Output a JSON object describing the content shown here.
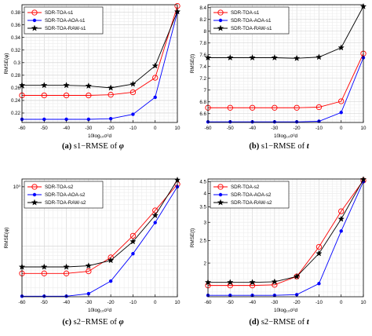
{
  "figure": {
    "colors": {
      "toa": "#ff0000",
      "aoa": "#0000ff",
      "raw": "#000000",
      "grid": "#d9d9d9",
      "axis": "#000000"
    }
  },
  "chart_data": [
    {
      "type": "line",
      "id": "a",
      "caption": {
        "letter": "(a)",
        "text": "s1−RMSE of",
        "symbol": "φ"
      },
      "xlabel": "10log₁₀σ²d",
      "ylabel": "RMSE(φ)",
      "xlim": [
        -60,
        10
      ],
      "ylim": [
        0.205,
        0.392
      ],
      "x": [
        -60,
        -50,
        -40,
        -30,
        -20,
        -10,
        0,
        10
      ],
      "xticks": [
        "-60",
        "-50",
        "-40",
        "-30",
        "-20",
        "-10",
        "0",
        "10"
      ],
      "yticks": [
        0.22,
        0.24,
        0.26,
        0.28,
        0.3,
        0.32,
        0.34,
        0.36,
        0.38
      ],
      "yticklabels": [
        "0.22",
        "0.24",
        "0.26",
        "0.28",
        "0.3",
        "0.32",
        "0.34",
        "0.36",
        "0.38"
      ],
      "log": false,
      "legend": "top-left",
      "series": [
        {
          "name": "SDR-TOA-s1",
          "marker": "circle",
          "color": "#ff0000",
          "values": [
            0.248,
            0.248,
            0.248,
            0.248,
            0.249,
            0.253,
            0.276,
            0.39
          ]
        },
        {
          "name": "SDR-TOA-AOA-s1",
          "marker": "dot",
          "color": "#0000ff",
          "values": [
            0.21,
            0.21,
            0.21,
            0.21,
            0.211,
            0.218,
            0.245,
            0.38
          ]
        },
        {
          "name": "SDR-TOA-RAW-s1",
          "marker": "star",
          "color": "#000000",
          "values": [
            0.264,
            0.264,
            0.264,
            0.263,
            0.26,
            0.266,
            0.295,
            0.381
          ]
        }
      ]
    },
    {
      "type": "line",
      "id": "b",
      "caption": {
        "letter": "(b)",
        "text": "s1−RMSE of",
        "symbol": "t"
      },
      "xlabel": "10log₁₀σ²d",
      "ylabel": "RMSE(t)",
      "xlim": [
        -60,
        10
      ],
      "ylim": [
        6.45,
        8.45
      ],
      "x": [
        -60,
        -50,
        -40,
        -30,
        -20,
        -10,
        0,
        10
      ],
      "xticks": [
        "-60",
        "-50",
        "-40",
        "-30",
        "-20",
        "-10",
        "0",
        "10"
      ],
      "yticks": [
        6.6,
        6.8,
        7.0,
        7.2,
        7.4,
        7.6,
        7.8,
        8.0,
        8.2,
        8.4
      ],
      "yticklabels": [
        "6.6",
        "6.8",
        "7",
        "7.2",
        "7.4",
        "7.6",
        "7.8",
        "8",
        "8.2",
        "8.4"
      ],
      "log": false,
      "legend": "top-left",
      "series": [
        {
          "name": "SDR-TOA-s1",
          "marker": "circle",
          "color": "#ff0000",
          "values": [
            6.7,
            6.7,
            6.7,
            6.7,
            6.7,
            6.71,
            6.81,
            7.62
          ]
        },
        {
          "name": "SDR-TOA-AOA-s1",
          "marker": "dot",
          "color": "#0000ff",
          "values": [
            6.46,
            6.46,
            6.46,
            6.46,
            6.46,
            6.47,
            6.62,
            7.55
          ]
        },
        {
          "name": "SDR-TOA-RAW-s1",
          "marker": "star",
          "color": "#000000",
          "values": [
            7.55,
            7.55,
            7.55,
            7.55,
            7.54,
            7.56,
            7.72,
            8.42
          ]
        }
      ]
    },
    {
      "type": "line",
      "id": "c",
      "caption": {
        "letter": "(c)",
        "text": "s2−RMSE of",
        "symbol": "φ"
      },
      "xlabel": "10log₁₀σ²d",
      "ylabel": "RMSE(φ)",
      "xlim": [
        -60,
        10
      ],
      "ylim": [
        0.0142,
        1.35
      ],
      "x": [
        -60,
        -50,
        -40,
        -30,
        -20,
        -10,
        0,
        10
      ],
      "xticks": [
        "-60",
        "-50",
        "-40",
        "-30",
        "-20",
        "-10",
        "0",
        "10"
      ],
      "yticks": [
        1
      ],
      "yticklabels": [
        "10⁰"
      ],
      "log": true,
      "legend": "top-left",
      "series": [
        {
          "name": "SDR-TOA-s2",
          "marker": "circle",
          "color": "#ff0000",
          "values": [
            0.035,
            0.035,
            0.035,
            0.038,
            0.065,
            0.15,
            0.4,
            1.1
          ]
        },
        {
          "name": "SDR-TOA-AOA-s2",
          "marker": "dot",
          "color": "#0000ff",
          "values": [
            0.0145,
            0.0145,
            0.0145,
            0.016,
            0.026,
            0.075,
            0.25,
            1.0
          ]
        },
        {
          "name": "SDR-TOA-RAW-s2",
          "marker": "star",
          "color": "#000000",
          "values": [
            0.045,
            0.045,
            0.045,
            0.047,
            0.058,
            0.12,
            0.33,
            1.3
          ]
        }
      ]
    },
    {
      "type": "line",
      "id": "d",
      "caption": {
        "letter": "(d)",
        "text": "s2−RMSE of",
        "symbol": "t"
      },
      "xlabel": "10log₁₀σ²d",
      "ylabel": "RMSE(t)",
      "xlim": [
        -60,
        10
      ],
      "ylim": [
        1.43,
        4.62
      ],
      "x": [
        -60,
        -50,
        -40,
        -30,
        -20,
        -10,
        0,
        10
      ],
      "xticks": [
        "-60",
        "-50",
        "-40",
        "-30",
        "-20",
        "-10",
        "0",
        "10"
      ],
      "yticks": [
        2,
        2.5,
        3,
        3.5,
        4,
        4.5
      ],
      "yticklabels": [
        "2",
        "2.5",
        "3",
        "3.5",
        "4",
        "4.5"
      ],
      "log": true,
      "legend": "top-left",
      "series": [
        {
          "name": "SDR-TOA-s2",
          "marker": "circle",
          "color": "#ff0000",
          "values": [
            1.6,
            1.6,
            1.6,
            1.61,
            1.75,
            2.35,
            3.35,
            4.55
          ]
        },
        {
          "name": "SDR-TOA-AOA-s2",
          "marker": "dot",
          "color": "#0000ff",
          "values": [
            1.45,
            1.45,
            1.45,
            1.45,
            1.46,
            1.63,
            2.75,
            4.5
          ]
        },
        {
          "name": "SDR-TOA-RAW-s2",
          "marker": "star",
          "color": "#000000",
          "values": [
            1.65,
            1.65,
            1.65,
            1.66,
            1.75,
            2.2,
            3.1,
            4.6
          ]
        }
      ]
    }
  ]
}
